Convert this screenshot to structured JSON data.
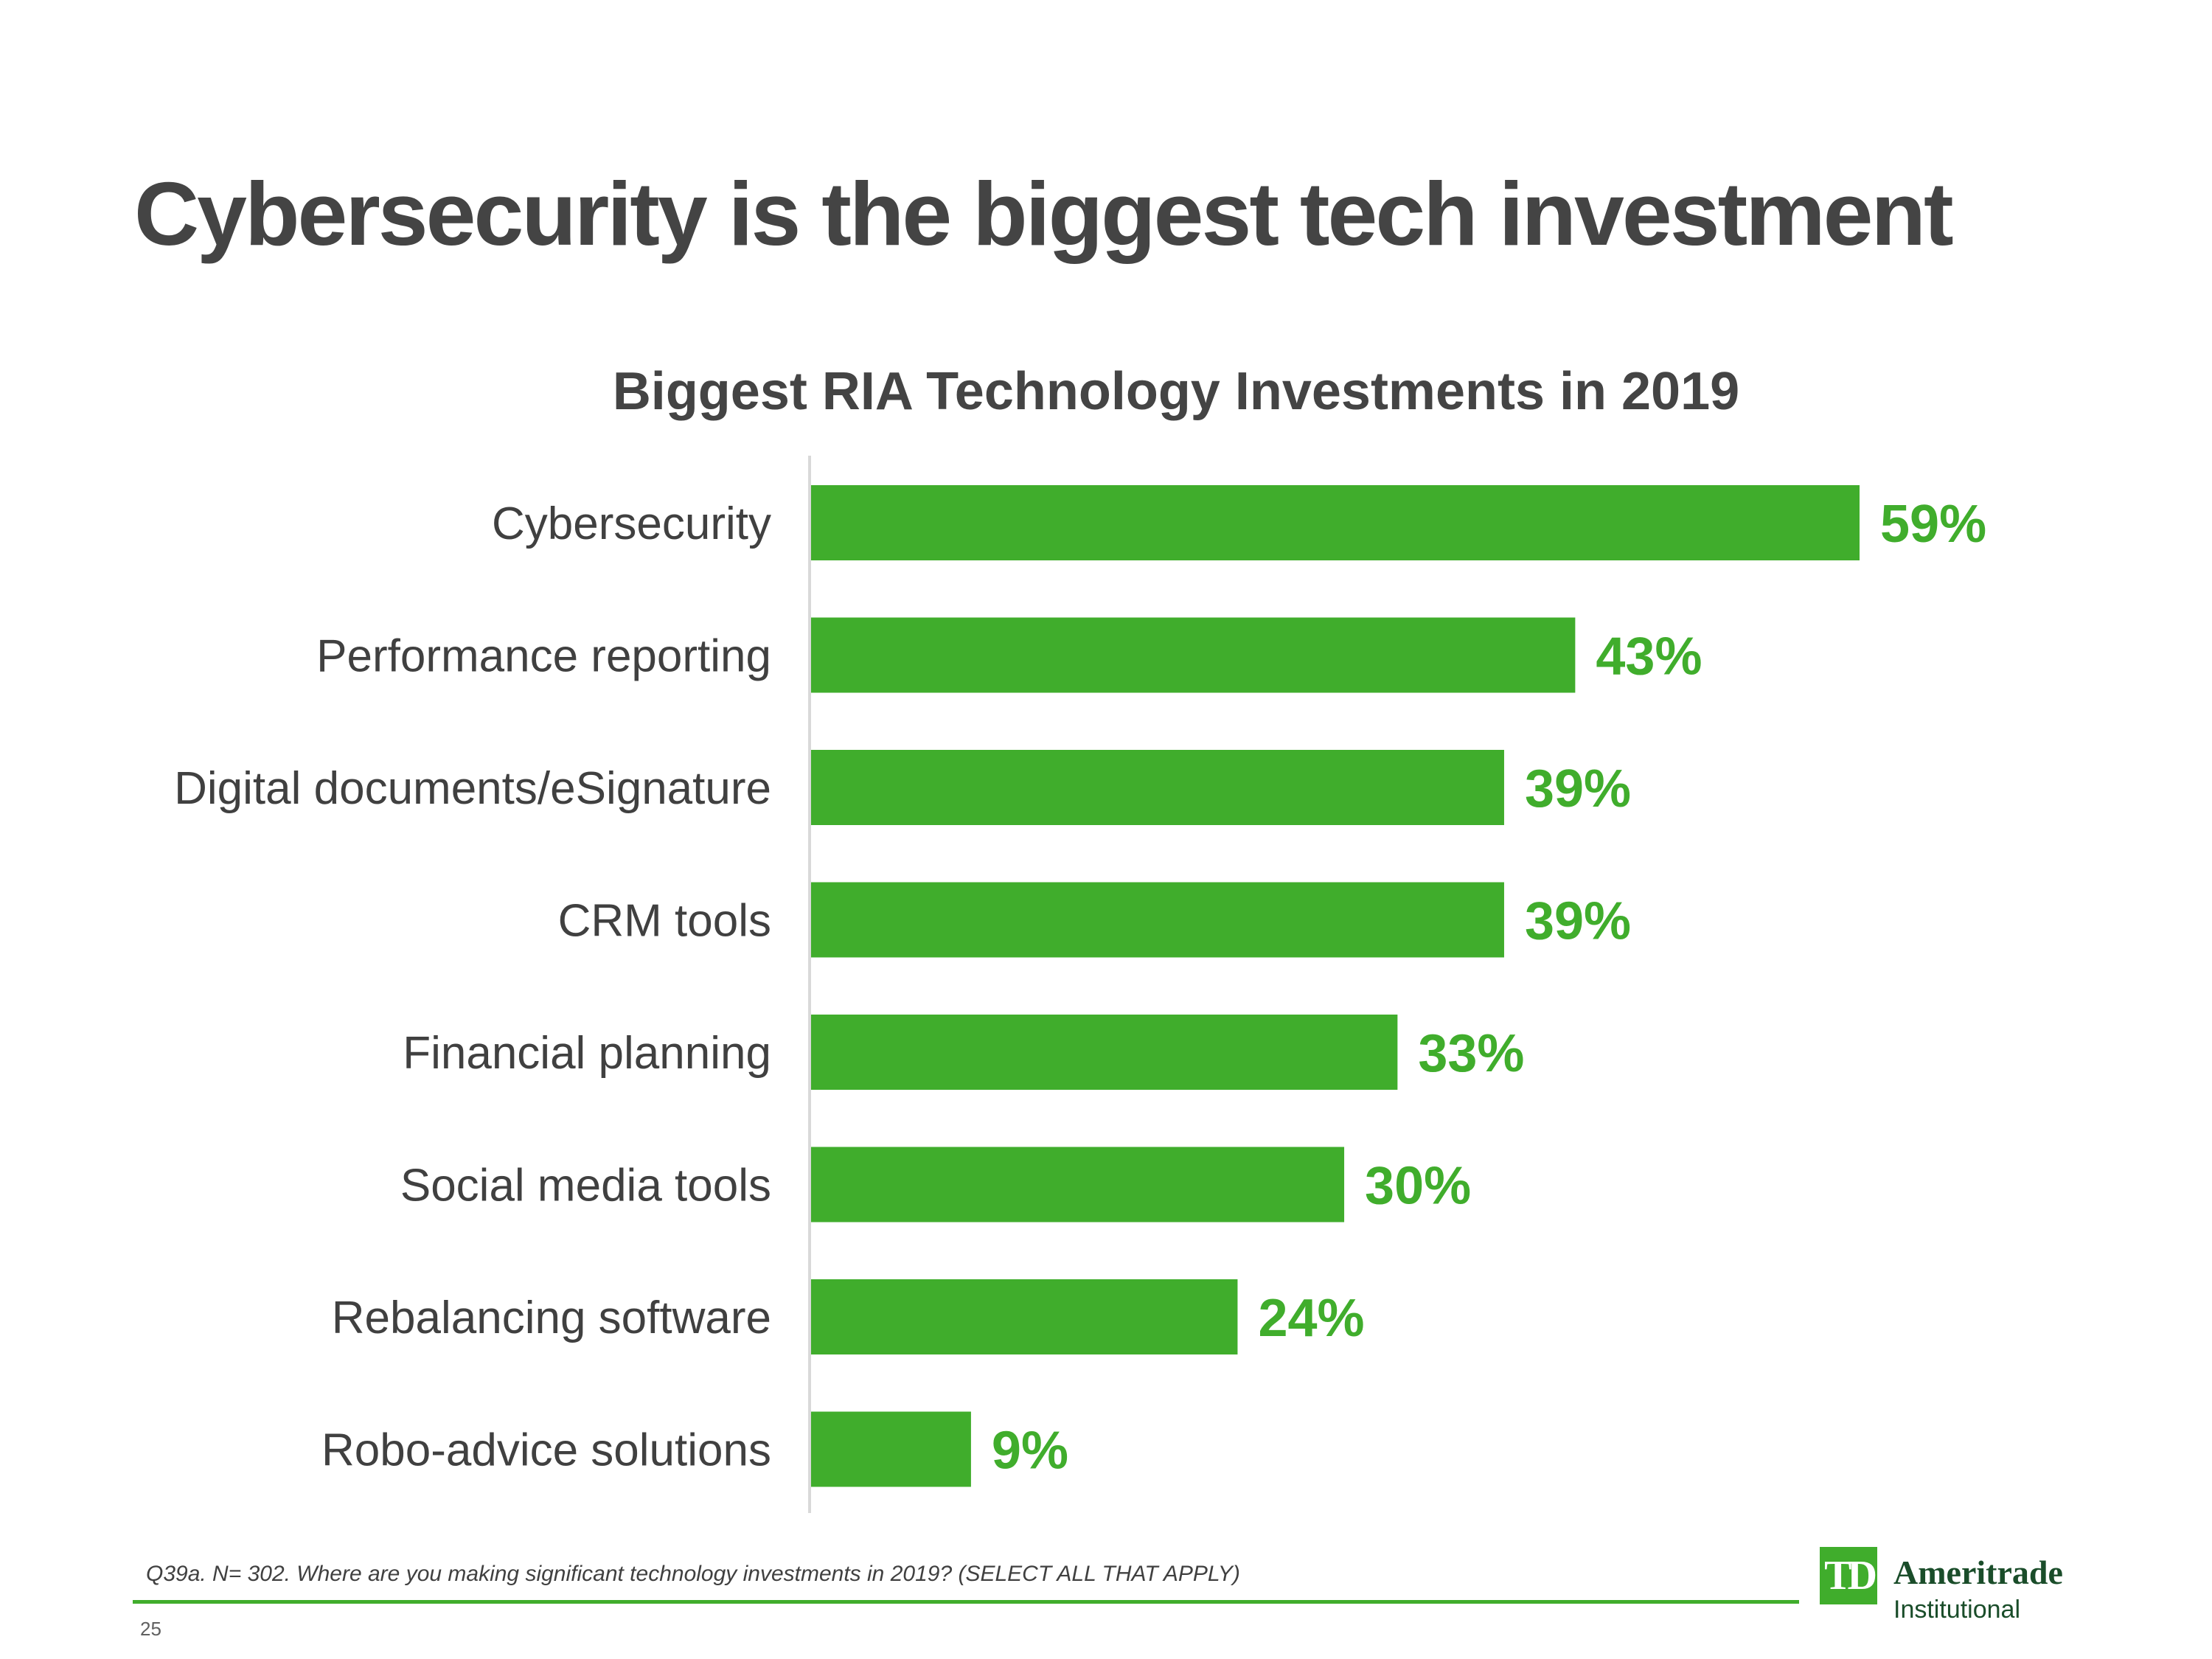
{
  "slide": {
    "title": "Cybersecurity is the biggest tech investment",
    "footnote": "Q39a. N= 302. Where are you making significant technology investments in 2019?  (SELECT ALL THAT APPLY)",
    "page_number": "25"
  },
  "logo": {
    "mark": "TD",
    "brand": "Ameritrade",
    "subtitle": "Institutional"
  },
  "colors": {
    "bar": "#40ad2c",
    "title_text": "#444444",
    "label_text": "#404040",
    "axis_line": "#d9d9d9"
  },
  "chart_data": {
    "type": "bar",
    "orientation": "horizontal",
    "title": "Biggest RIA Technology Investments in 2019",
    "categories": [
      "Cybersecurity",
      "Performance reporting",
      "Digital documents/eSignature",
      "CRM tools",
      "Financial planning",
      "Social media tools",
      "Rebalancing software",
      "Robo-advice solutions"
    ],
    "values": [
      59,
      43,
      39,
      39,
      33,
      30,
      24,
      9
    ],
    "value_labels": [
      "59%",
      "43%",
      "39%",
      "39%",
      "33%",
      "30%",
      "24%",
      "9%"
    ],
    "xlim": [
      0,
      59
    ],
    "xlabel": "",
    "ylabel": "",
    "grid": false,
    "legend": "none"
  }
}
